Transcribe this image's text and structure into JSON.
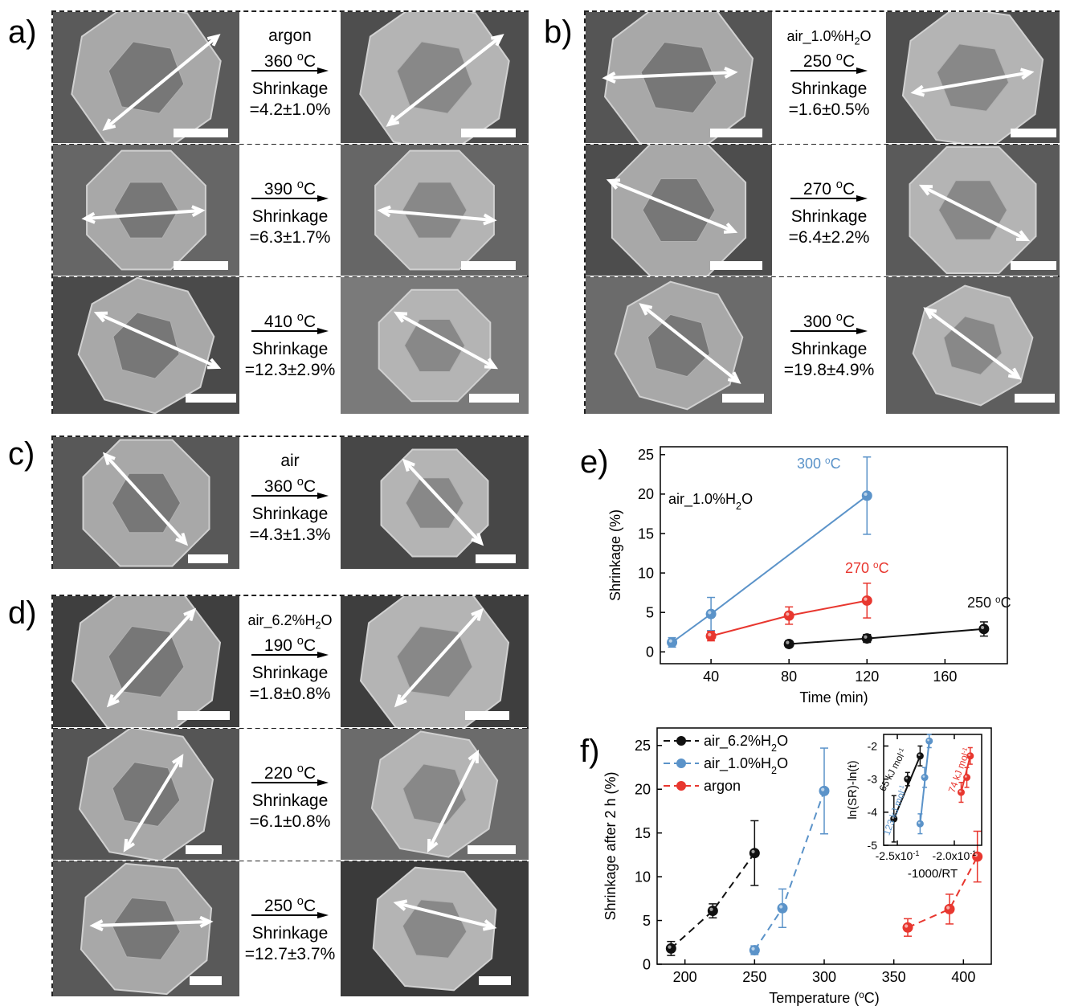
{
  "panels": {
    "a": {
      "label": "a)",
      "rows": [
        {
          "lines": [
            "argon",
            "360 oC",
            "Shrinkage",
            "=4.2±1.0%"
          ]
        },
        {
          "lines": [
            "390 oC",
            "Shrinkage",
            "=6.3±1.7%"
          ]
        },
        {
          "lines": [
            "410 oC",
            "Shrinkage",
            "=12.3±2.9%"
          ]
        }
      ]
    },
    "b": {
      "label": "b)",
      "rows": [
        {
          "lines": [
            "air_1.0%H2O",
            "250 oC",
            "Shrinkage",
            "=1.6±0.5%"
          ]
        },
        {
          "lines": [
            "270 oC",
            "Shrinkage",
            "=6.4±2.2%"
          ]
        },
        {
          "lines": [
            "300 oC",
            "Shrinkage",
            "=19.8±4.9%"
          ]
        }
      ]
    },
    "c": {
      "label": "c)",
      "rows": [
        {
          "lines": [
            "air",
            "360 oC",
            "Shrinkage",
            "=4.3±1.3%"
          ]
        }
      ]
    },
    "d": {
      "label": "d)",
      "rows": [
        {
          "lines": [
            "air_6.2%H2O",
            "190 oC",
            "Shrinkage",
            "=1.8±0.8%"
          ]
        },
        {
          "lines": [
            "220 oC",
            "Shrinkage",
            "=6.1±0.8%"
          ]
        },
        {
          "lines": [
            "250 oC",
            "Shrinkage",
            "=12.7±3.7%"
          ]
        }
      ]
    }
  },
  "colors": {
    "black": "#111111",
    "blue": "#5b93c9",
    "red": "#e8372f"
  },
  "chart_data": [
    {
      "panel": "e)",
      "type": "line",
      "xlabel": "Time (min)",
      "ylabel": "Shrinkage (%)",
      "xlim": [
        14,
        192
      ],
      "ylim": [
        -1.5,
        26
      ],
      "xticks": [
        "40",
        "80",
        "120",
        "160"
      ],
      "yticks": [
        "0",
        "5",
        "10",
        "15",
        "20",
        "25"
      ],
      "annotation": "air_1.0%H2O",
      "series": [
        {
          "name": "300 °C",
          "color": "blue",
          "dashed": false,
          "points": [
            [
              20,
              1.2,
              0.6
            ],
            [
              40,
              4.8,
              2.1
            ],
            [
              120,
              19.8,
              4.9
            ]
          ]
        },
        {
          "name": "270 °C",
          "color": "red",
          "dashed": false,
          "points": [
            [
              40,
              2.0,
              0.6
            ],
            [
              80,
              4.6,
              1.1
            ],
            [
              120,
              6.5,
              2.2
            ]
          ]
        },
        {
          "name": "250 °C",
          "color": "black",
          "dashed": false,
          "points": [
            [
              80,
              1.0,
              0.4
            ],
            [
              120,
              1.7,
              0.5
            ],
            [
              180,
              2.9,
              0.9
            ]
          ]
        }
      ]
    },
    {
      "panel": "f)",
      "type": "line",
      "xlabel": "Temperature (°C)",
      "ylabel": "Shrinkage after 2 h (%)",
      "xlim": [
        180,
        420
      ],
      "ylim": [
        0,
        27
      ],
      "xticks": [
        "200",
        "250",
        "300",
        "350",
        "400"
      ],
      "yticks": [
        "0",
        "5",
        "10",
        "15",
        "20",
        "25"
      ],
      "legend": "top-left",
      "series": [
        {
          "name": "air_6.2%H2O",
          "color": "black",
          "dashed": true,
          "points": [
            [
              190,
              1.8,
              0.8
            ],
            [
              220,
              6.1,
              0.8
            ],
            [
              250,
              12.7,
              3.7
            ]
          ]
        },
        {
          "name": "air_1.0%H2O",
          "color": "blue",
          "dashed": true,
          "points": [
            [
              250,
              1.6,
              0.5
            ],
            [
              270,
              6.4,
              2.2
            ],
            [
              300,
              19.8,
              4.9
            ]
          ]
        },
        {
          "name": "argon",
          "color": "red",
          "dashed": true,
          "points": [
            [
              360,
              4.2,
              1.0
            ],
            [
              390,
              6.3,
              1.7
            ],
            [
              410,
              12.3,
              2.9
            ]
          ]
        }
      ]
    },
    {
      "panel": "f) inset",
      "type": "scatter",
      "xlabel": "-1000/RT",
      "ylabel": "ln(SR)-ln(t)",
      "xlim": [
        -0.262,
        -0.176
      ],
      "ylim": [
        -5,
        -1.65
      ],
      "xticks": [
        "-2.5x10-1",
        "-2.0x10-1"
      ],
      "yticks": [
        "-5",
        "-4",
        "-3",
        "-2"
      ],
      "series": [
        {
          "label": "65 kJ mol-1",
          "color": "black",
          "points": [
            [
              -0.253,
              -4.2,
              0.7
            ],
            [
              -0.241,
              -3.0,
              0.2
            ],
            [
              -0.23,
              -2.3,
              0.3
            ]
          ]
        },
        {
          "label": "123 kJ mol-1",
          "color": "blue",
          "points": [
            [
              -0.23,
              -4.35,
              0.3
            ],
            [
              -0.226,
              -2.95,
              0.3
            ],
            [
              -0.222,
              -1.85,
              0.2
            ]
          ]
        },
        {
          "label": "74 kJ mol-1",
          "color": "red",
          "points": [
            [
              -0.194,
              -3.4,
              0.3
            ],
            [
              -0.189,
              -2.95,
              0.3
            ],
            [
              -0.186,
              -2.3,
              0.25
            ]
          ]
        }
      ]
    }
  ]
}
